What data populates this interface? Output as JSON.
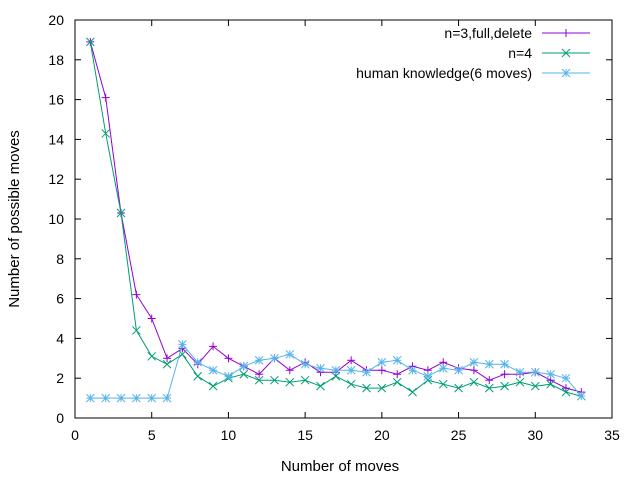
{
  "chart_data": {
    "type": "line",
    "xlabel": "Number of moves",
    "ylabel": "Number of possible moves",
    "xlim": [
      0,
      35
    ],
    "ylim": [
      0,
      20
    ],
    "xticks": [
      0,
      5,
      10,
      15,
      20,
      25,
      30,
      35
    ],
    "yticks": [
      0,
      2,
      4,
      6,
      8,
      10,
      12,
      14,
      16,
      18,
      20
    ],
    "xtick_labels": [
      "0",
      "5",
      "10",
      "15",
      "20",
      "25",
      "30",
      "35"
    ],
    "ytick_labels": [
      "0",
      "2",
      "4",
      "6",
      "8",
      "10",
      "12",
      "14",
      "16",
      "18",
      "20"
    ],
    "grid": false,
    "legend_position": "top-right",
    "x": [
      1,
      2,
      3,
      4,
      5,
      6,
      7,
      8,
      9,
      10,
      11,
      12,
      13,
      14,
      15,
      16,
      17,
      18,
      19,
      20,
      21,
      22,
      23,
      24,
      25,
      26,
      27,
      28,
      29,
      30,
      31,
      32,
      33
    ],
    "series": [
      {
        "name": "n=3,full,delete",
        "color": "#9400d3",
        "marker": "plus",
        "values": [
          18.9,
          16.1,
          10.3,
          6.2,
          5.0,
          3.0,
          3.5,
          2.7,
          3.6,
          3.0,
          2.6,
          2.2,
          3.0,
          2.4,
          2.8,
          2.3,
          2.3,
          2.9,
          2.4,
          2.4,
          2.2,
          2.6,
          2.4,
          2.8,
          2.5,
          2.4,
          1.9,
          2.2,
          2.2,
          2.3,
          1.9,
          1.5,
          1.3
        ]
      },
      {
        "name": "n=4",
        "color": "#009e73",
        "marker": "x",
        "values": [
          18.9,
          14.3,
          10.3,
          4.4,
          3.1,
          2.7,
          3.2,
          2.1,
          1.6,
          2.0,
          2.2,
          1.9,
          1.9,
          1.8,
          1.9,
          1.6,
          2.1,
          1.7,
          1.5,
          1.5,
          1.8,
          1.3,
          1.9,
          1.7,
          1.5,
          1.8,
          1.5,
          1.6,
          1.8,
          1.6,
          1.7,
          1.3,
          1.1
        ]
      },
      {
        "name": "human knowledge(6 moves)",
        "color": "#56b4e9",
        "marker": "star",
        "values": [
          1.0,
          1.0,
          1.0,
          1.0,
          1.0,
          1.0,
          3.7,
          2.8,
          2.4,
          2.1,
          2.6,
          2.9,
          3.0,
          3.2,
          2.7,
          2.5,
          2.4,
          2.4,
          2.3,
          2.8,
          2.9,
          2.4,
          2.1,
          2.5,
          2.4,
          2.8,
          2.7,
          2.7,
          2.3,
          2.3,
          2.2,
          2.0,
          1.1
        ]
      }
    ]
  }
}
